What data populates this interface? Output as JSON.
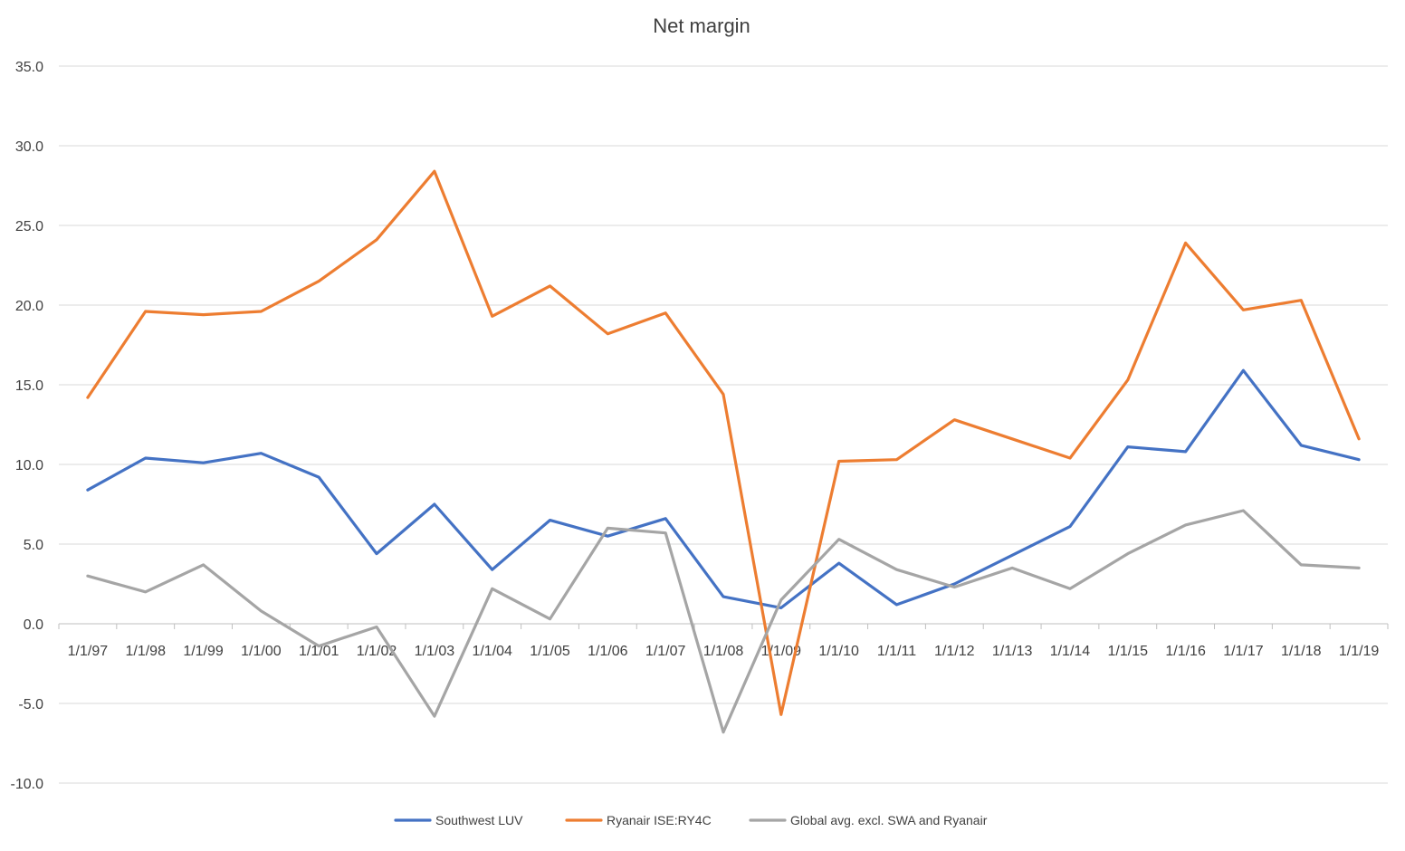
{
  "chart_data": {
    "type": "line",
    "title": "Net margin",
    "xlabel": "",
    "ylabel": "",
    "ylim": [
      -10,
      35
    ],
    "y_ticks": [
      "35.0",
      "30.0",
      "25.0",
      "20.0",
      "15.0",
      "10.0",
      "5.0",
      "0.0",
      "-5.0",
      "-10.0"
    ],
    "y_tick_values": [
      35,
      30,
      25,
      20,
      15,
      10,
      5,
      0,
      -5,
      -10
    ],
    "grid": true,
    "legend_position": "bottom",
    "categories": [
      "1/1/97",
      "1/1/98",
      "1/1/99",
      "1/1/00",
      "1/1/01",
      "1/1/02",
      "1/1/03",
      "1/1/04",
      "1/1/05",
      "1/1/06",
      "1/1/07",
      "1/1/08",
      "1/1/09",
      "1/1/10",
      "1/1/11",
      "1/1/12",
      "1/1/13",
      "1/1/14",
      "1/1/15",
      "1/1/16",
      "1/1/17",
      "1/1/18",
      "1/1/19"
    ],
    "series": [
      {
        "name": "Southwest LUV",
        "color": "#4472c4",
        "values": [
          8.4,
          10.4,
          10.1,
          10.7,
          9.2,
          4.4,
          7.5,
          3.4,
          6.5,
          5.5,
          6.6,
          1.7,
          1.0,
          3.8,
          1.2,
          2.5,
          4.3,
          6.1,
          11.1,
          10.8,
          15.9,
          11.2,
          10.3
        ]
      },
      {
        "name": "Ryanair ISE:RY4C",
        "color": "#ed7d31",
        "values": [
          14.2,
          19.6,
          19.4,
          19.6,
          21.5,
          24.1,
          28.4,
          19.3,
          21.2,
          18.2,
          19.5,
          14.4,
          -5.7,
          10.2,
          10.3,
          12.8,
          11.6,
          10.4,
          15.3,
          23.9,
          19.7,
          20.3,
          11.6
        ]
      },
      {
        "name": "Global avg. excl. SWA and Ryanair",
        "color": "#a5a5a5",
        "values": [
          3.0,
          2.0,
          3.7,
          0.8,
          -1.4,
          -0.2,
          -5.8,
          2.2,
          0.3,
          6.0,
          5.7,
          -6.8,
          1.5,
          5.3,
          3.4,
          2.3,
          3.5,
          2.2,
          4.4,
          6.2,
          7.1,
          3.7,
          3.5
        ]
      }
    ]
  }
}
